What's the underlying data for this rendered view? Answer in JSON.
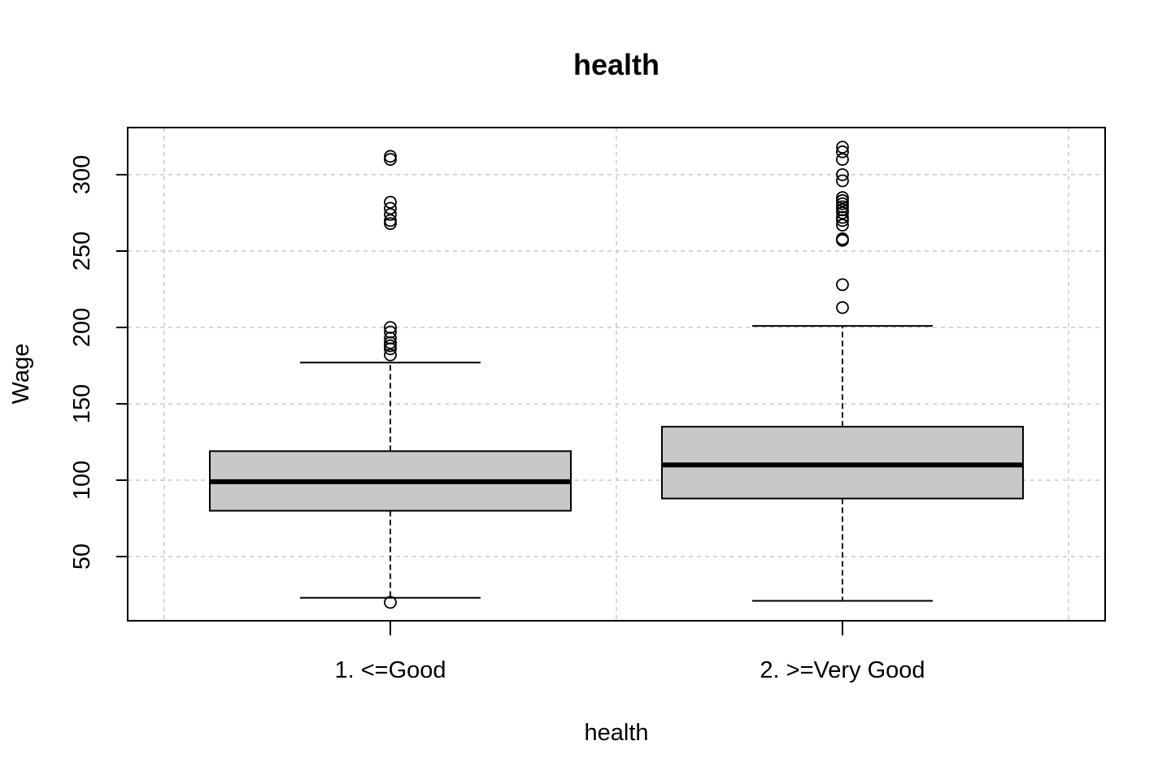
{
  "chart_data": {
    "type": "boxplot",
    "title": "health",
    "xlabel": "health",
    "ylabel": "Wage",
    "ylim": [
      12,
      330
    ],
    "yticks": [
      50,
      100,
      150,
      200,
      250,
      300
    ],
    "grid": true,
    "categories": [
      "1. <=Good",
      "2. >=Very Good"
    ],
    "boxes": [
      {
        "category": "1. <=Good",
        "lower_whisker": 23,
        "q1": 80,
        "median": 99,
        "q3": 119,
        "upper_whisker": 177,
        "outliers": [
          20,
          182,
          186,
          188,
          190,
          193,
          197,
          200,
          268,
          270,
          274,
          278,
          282,
          310,
          312
        ]
      },
      {
        "category": "2. >=Very Good",
        "lower_whisker": 21,
        "q1": 88,
        "median": 110,
        "q3": 135,
        "upper_whisker": 201,
        "outliers": [
          213,
          228,
          257,
          258,
          267,
          270,
          272,
          275,
          277,
          279,
          281,
          283,
          285,
          296,
          300,
          310,
          315,
          318
        ]
      }
    ]
  }
}
